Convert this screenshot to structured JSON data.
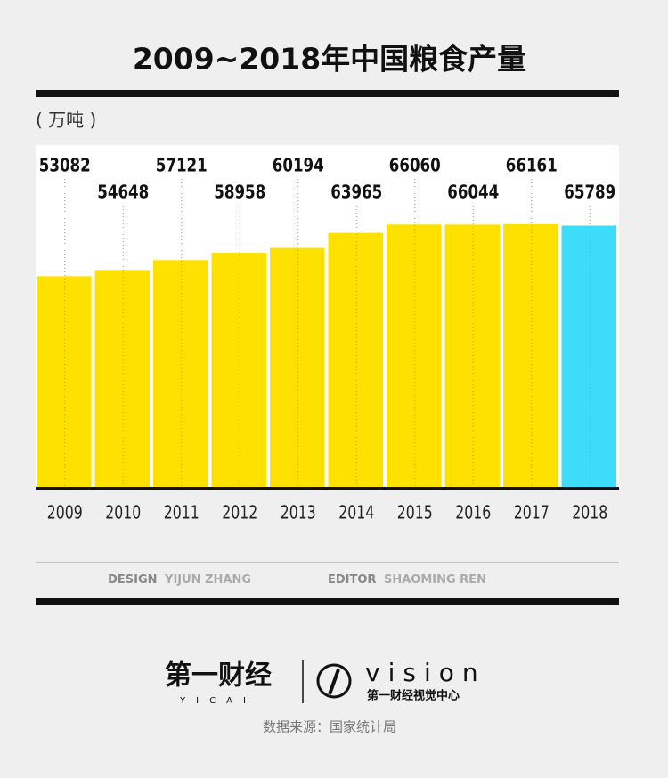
{
  "chart_data": {
    "type": "bar",
    "title": "2009~2018年中国粮食产量",
    "unit": "( 万吨 )",
    "categories": [
      "2009",
      "2010",
      "2011",
      "2012",
      "2013",
      "2014",
      "2015",
      "2016",
      "2017",
      "2018"
    ],
    "values": [
      53082,
      54648,
      57121,
      58958,
      60194,
      63965,
      66060,
      66044,
      66161,
      65789
    ],
    "colors": [
      "#ffe100",
      "#ffe100",
      "#ffe100",
      "#ffe100",
      "#ffe100",
      "#ffe100",
      "#ffe100",
      "#ffe100",
      "#ffe100",
      "#3ddcfb"
    ],
    "ylim": [
      0,
      86000
    ],
    "credits": {
      "design_label": "DESIGN",
      "design_name": "YIJUN ZHANG",
      "editor_label": "EDITOR",
      "editor_name": "SHAOMING REN"
    },
    "logo": {
      "brand": "第一财经",
      "brand_sub": "YICAI",
      "vision": "vision",
      "vision_sub": "第一财经视觉中心"
    },
    "source": "数据来源：国家统计局"
  }
}
